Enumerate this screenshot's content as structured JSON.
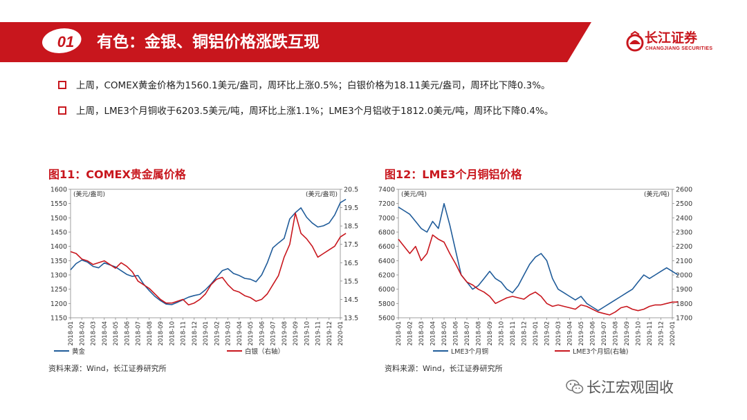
{
  "header": {
    "badge": "01",
    "title": "有色：金银、铜铝价格涨跌互现",
    "logo_cn": "长江证券",
    "logo_en": "CHANGJIANG SECURITIES"
  },
  "bullets": [
    "上周，COMEX黄金价格为1560.1美元/盎司，周环比上涨0.5%；白银价格为18.11美元/盎司，周环比下降0.3%。",
    "上周，LME3个月铜收于6203.5美元/吨，周环比上涨1.1%；LME3个月铝收于1812.0美元/吨，周环比下降0.4%。"
  ],
  "footer_brand": "长江宏观固收",
  "colors": {
    "accent": "#c8161d",
    "blue": "#1f5b99",
    "red": "#c8161d"
  },
  "charts": [
    {
      "fig_title": "图11：COMEX贵金属价格",
      "source": "资料来源：Wind，长江证券研究所",
      "chart_data": {
        "type": "line",
        "left_unit": "(美元/盎司)",
        "right_unit": "(美元/盎司)",
        "left_ylim": [
          1150,
          1600
        ],
        "right_ylim": [
          13.5,
          20.5
        ],
        "left_ticks": [
          "1600",
          "1550",
          "1500",
          "1450",
          "1400",
          "1350",
          "1300",
          "1250",
          "1200",
          "1150"
        ],
        "right_ticks": [
          "20.5",
          "19.5",
          "18.5",
          "17.5",
          "16.5",
          "15.5",
          "14.5",
          "13.5"
        ],
        "x_labels": [
          "2018-01",
          "2018-02",
          "2018-03",
          "2018-04",
          "2018-05",
          "2018-06",
          "2018-07",
          "2018-08",
          "2018-09",
          "2018-10",
          "2018-11",
          "2018-12",
          "2019-01",
          "2019-02",
          "2019-03",
          "2019-04",
          "2019-05",
          "2019-06",
          "2019-07",
          "2019-08",
          "2019-09",
          "2019-10",
          "2019-11",
          "2019-12",
          "2020-01"
        ],
        "x": [
          0,
          0.5,
          1,
          1.5,
          2,
          2.5,
          3,
          3.5,
          4,
          4.5,
          5,
          5.5,
          6,
          6.5,
          7,
          7.5,
          8,
          8.5,
          9,
          9.5,
          10,
          10.5,
          11,
          11.5,
          12,
          12.5,
          13,
          13.5,
          14,
          14.5,
          15,
          15.5,
          16,
          16.5,
          17,
          17.5,
          18,
          18.5,
          19,
          19.5,
          20,
          20.5,
          21,
          21.5,
          22,
          22.5,
          23,
          23.5,
          24,
          24.5
        ],
        "series": [
          {
            "name": "黄金",
            "axis": "left",
            "color": "#1f5b99",
            "values": [
              1318,
              1340,
              1352,
              1345,
              1330,
              1325,
              1342,
              1335,
              1328,
              1315,
              1302,
              1295,
              1298,
              1268,
              1245,
              1225,
              1210,
              1198,
              1196,
              1204,
              1213,
              1222,
              1228,
              1232,
              1248,
              1268,
              1292,
              1315,
              1322,
              1305,
              1298,
              1288,
              1285,
              1276,
              1300,
              1342,
              1395,
              1412,
              1428,
              1496,
              1518,
              1535,
              1502,
              1482,
              1468,
              1472,
              1482,
              1510,
              1553,
              1565
            ]
          },
          {
            "name": "白银（右轴）",
            "axis": "right",
            "color": "#c8161d",
            "values": [
              17.1,
              17.0,
              16.7,
              16.6,
              16.4,
              16.5,
              16.6,
              16.4,
              16.2,
              16.5,
              16.3,
              16.0,
              15.5,
              15.3,
              15.1,
              14.8,
              14.5,
              14.3,
              14.3,
              14.4,
              14.5,
              14.2,
              14.3,
              14.5,
              14.8,
              15.3,
              15.6,
              15.7,
              15.3,
              15.0,
              14.9,
              14.7,
              14.6,
              14.4,
              14.5,
              14.8,
              15.3,
              15.8,
              16.8,
              17.5,
              19.2,
              18.1,
              17.8,
              17.4,
              16.8,
              17.0,
              17.2,
              17.4,
              17.9,
              18.1
            ]
          }
        ]
      }
    },
    {
      "fig_title": "图12：LME3个月铜铝价格",
      "source": "资料来源：Wind，长江证券研究所",
      "chart_data": {
        "type": "line",
        "left_unit": "(美元/吨)",
        "right_unit": "(美元/吨)",
        "left_ylim": [
          5600,
          7400
        ],
        "right_ylim": [
          1700,
          2600
        ],
        "left_ticks": [
          "7400",
          "7200",
          "7000",
          "6800",
          "6600",
          "6400",
          "6200",
          "6000",
          "5800",
          "5600"
        ],
        "right_ticks": [
          "2600",
          "2500",
          "2400",
          "2300",
          "2200",
          "2100",
          "2000",
          "1900",
          "1800",
          "1700"
        ],
        "x_labels": [
          "2018-01",
          "2018-02",
          "2018-03",
          "2018-04",
          "2018-05",
          "2018-06",
          "2018-07",
          "2018-08",
          "2018-09",
          "2018-10",
          "2018-11",
          "2018-12",
          "2019-01",
          "2019-02",
          "2019-03",
          "2019-04",
          "2019-05",
          "2019-06",
          "2019-07",
          "2019-08",
          "2019-09",
          "2019-10",
          "2019-11",
          "2019-12",
          "2020-01"
        ],
        "x": [
          0,
          0.5,
          1,
          1.5,
          2,
          2.5,
          3,
          3.5,
          4,
          4.5,
          5,
          5.5,
          6,
          6.5,
          7,
          7.5,
          8,
          8.5,
          9,
          9.5,
          10,
          10.5,
          11,
          11.5,
          12,
          12.5,
          13,
          13.5,
          14,
          14.5,
          15,
          15.5,
          16,
          16.5,
          17,
          17.5,
          18,
          18.5,
          19,
          19.5,
          20,
          20.5,
          21,
          21.5,
          22,
          22.5,
          23,
          23.5,
          24,
          24.5
        ],
        "series": [
          {
            "name": "LME3个月铜",
            "axis": "left",
            "color": "#1f5b99",
            "values": [
              7150,
              7100,
              7050,
              6950,
              6850,
              6800,
              6950,
              6850,
              7200,
              6900,
              6550,
              6200,
              6100,
              6000,
              6050,
              6150,
              6250,
              6150,
              6100,
              6000,
              5950,
              6050,
              6200,
              6350,
              6450,
              6500,
              6400,
              6150,
              6000,
              5950,
              5900,
              5850,
              5900,
              5800,
              5750,
              5700,
              5750,
              5800,
              5850,
              5900,
              5950,
              6000,
              6100,
              6200,
              6150,
              6200,
              6250,
              6300,
              6250,
              6200
            ]
          },
          {
            "name": "LME3个月铝(右轴)",
            "axis": "right",
            "color": "#c8161d",
            "values": [
              2250,
              2200,
              2150,
              2200,
              2100,
              2150,
              2280,
              2250,
              2230,
              2150,
              2080,
              2000,
              1950,
              1930,
              1900,
              1880,
              1850,
              1800,
              1820,
              1840,
              1850,
              1840,
              1830,
              1860,
              1880,
              1850,
              1800,
              1780,
              1790,
              1780,
              1770,
              1760,
              1790,
              1780,
              1760,
              1740,
              1730,
              1720,
              1740,
              1770,
              1780,
              1760,
              1750,
              1760,
              1780,
              1790,
              1790,
              1800,
              1810,
              1810
            ]
          }
        ]
      }
    }
  ]
}
